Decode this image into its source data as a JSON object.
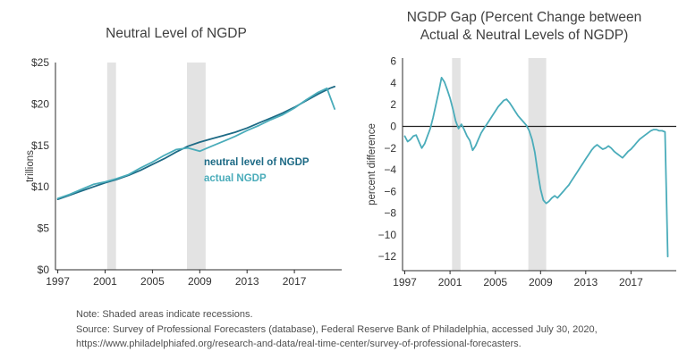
{
  "colors": {
    "neutral": "#1d6a85",
    "actual": "#4aacba",
    "recession": "#e3e3e3",
    "axis": "#2b2b2b",
    "zero_line": "#222222"
  },
  "notes": {
    "note": "Note: Shaded areas indicate recessions.",
    "source": "Source: Survey of Professional Forecasters (database), Federal Reserve Bank of Philadelphia, accessed July 30, 2020, https://www.philadelphiafed.org/research-and-data/real-time-center/survey-of-professional-forecasters."
  },
  "chart_data": [
    {
      "type": "line",
      "title": "Neutral Level of NGDP",
      "xlabel": "",
      "ylabel": "trillions",
      "xlim": [
        1996.8,
        2021
      ],
      "ylim": [
        0,
        25
      ],
      "xticks": [
        1997,
        2001,
        2005,
        2009,
        2013,
        2017
      ],
      "ytick_values": [
        0,
        5,
        10,
        15,
        20,
        25
      ],
      "ytick_labels": [
        "$0",
        "$5",
        "$10",
        "$15",
        "$20",
        "$25"
      ],
      "recessions": [
        [
          2001.17,
          2001.92
        ],
        [
          2007.92,
          2009.5
        ]
      ],
      "zero_line": false,
      "grid": false,
      "legend_position": "inside-right",
      "series": [
        {
          "name": "neutral level of NGDP",
          "color": "#1d6a85",
          "x": [
            1997,
            1998,
            1999,
            2000,
            2001,
            2002,
            2003,
            2004,
            2005,
            2006,
            2007,
            2008,
            2009,
            2010,
            2011,
            2012,
            2013,
            2014,
            2015,
            2016,
            2017,
            2018,
            2019,
            2020,
            2020.4
          ],
          "y": [
            8.5,
            9.0,
            9.5,
            10.0,
            10.5,
            10.9,
            11.4,
            12.0,
            12.7,
            13.4,
            14.2,
            14.9,
            15.4,
            15.8,
            16.2,
            16.6,
            17.1,
            17.7,
            18.3,
            18.9,
            19.6,
            20.4,
            21.2,
            21.9,
            22.1
          ]
        },
        {
          "name": "actual NGDP",
          "color": "#4aacba",
          "x": [
            1997,
            1998,
            1999,
            2000,
            2001,
            2002,
            2003,
            2004,
            2005,
            2006,
            2007,
            2008,
            2009,
            2010,
            2011,
            2012,
            2013,
            2014,
            2015,
            2016,
            2017,
            2018,
            2019,
            2019.75,
            2020.4
          ],
          "y": [
            8.6,
            9.1,
            9.7,
            10.3,
            10.6,
            11.0,
            11.5,
            12.3,
            13.0,
            13.8,
            14.5,
            14.7,
            14.3,
            14.9,
            15.5,
            16.1,
            16.8,
            17.4,
            18.1,
            18.7,
            19.5,
            20.5,
            21.4,
            21.9,
            19.4
          ]
        }
      ]
    },
    {
      "type": "line",
      "title": "NGDP Gap (Percent Change between Actual & Neutral Levels of NGDP)",
      "xlabel": "",
      "ylabel": "percent difference",
      "xlim": [
        1996.8,
        2021
      ],
      "ylim": [
        -13.3,
        6.3
      ],
      "xticks": [
        1997,
        2001,
        2005,
        2009,
        2013,
        2017
      ],
      "ytick_values": [
        6,
        4,
        2,
        0,
        -2,
        -4,
        -6,
        -8,
        -10,
        -12
      ],
      "ytick_labels": [
        "6",
        "4",
        "2",
        "0",
        "−2",
        "−4",
        "−6",
        "−8",
        "−10",
        "−12"
      ],
      "recessions": [
        [
          2001.17,
          2001.92
        ],
        [
          2007.92,
          2009.5
        ]
      ],
      "zero_line": true,
      "grid": false,
      "series": [
        {
          "name": "NGDP gap",
          "color": "#4aacba",
          "x_start": 1997,
          "x_step": 0.25,
          "y": [
            -0.9,
            -1.4,
            -1.2,
            -0.9,
            -0.8,
            -1.4,
            -2.0,
            -1.6,
            -0.9,
            -0.2,
            0.8,
            2.0,
            3.2,
            4.5,
            4.1,
            3.4,
            2.6,
            1.6,
            0.5,
            -0.2,
            0.2,
            -0.3,
            -0.9,
            -1.3,
            -2.2,
            -1.8,
            -1.2,
            -0.6,
            -0.2,
            0.2,
            0.6,
            1.0,
            1.4,
            1.8,
            2.1,
            2.4,
            2.5,
            2.2,
            1.8,
            1.4,
            1.0,
            0.7,
            0.4,
            0.1,
            -0.4,
            -1.2,
            -2.4,
            -4.2,
            -5.8,
            -6.8,
            -7.1,
            -6.9,
            -6.6,
            -6.4,
            -6.6,
            -6.3,
            -6.0,
            -5.7,
            -5.4,
            -5.0,
            -4.6,
            -4.2,
            -3.8,
            -3.4,
            -3.0,
            -2.6,
            -2.2,
            -1.9,
            -1.7,
            -1.9,
            -2.1,
            -2.0,
            -1.8,
            -2.0,
            -2.3,
            -2.5,
            -2.7,
            -2.9,
            -2.6,
            -2.3,
            -2.1,
            -1.8,
            -1.5,
            -1.2,
            -1.0,
            -0.8,
            -0.6,
            -0.4,
            -0.3,
            -0.3,
            -0.4,
            -0.4,
            -0.5,
            -12.0
          ]
        }
      ]
    }
  ]
}
